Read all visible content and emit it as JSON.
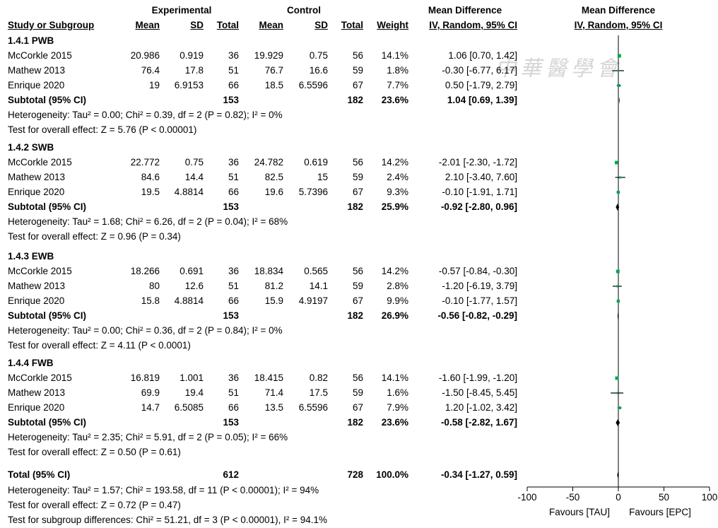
{
  "header": {
    "experimental": "Experimental",
    "control": "Control",
    "mean_difference": "Mean Difference",
    "mean_difference_plot": "Mean Difference",
    "study": "Study or Subgroup",
    "mean": "Mean",
    "sd": "SD",
    "total": "Total",
    "weight": "Weight",
    "method": "IV, Random, 95% CI",
    "method_plot": "IV, Random, 95% CI"
  },
  "subgroups": [
    {
      "title": "1.4.1 PWB",
      "studies": [
        {
          "name": "McCorkle 2015",
          "e_mean": "20.986",
          "e_sd": "0.919",
          "e_total": "36",
          "c_mean": "19.929",
          "c_sd": "0.75",
          "c_total": "56",
          "weight": "14.1%",
          "ci": "1.06 [0.70, 1.42]"
        },
        {
          "name": "Mathew 2013",
          "e_mean": "76.4",
          "e_sd": "17.8",
          "e_total": "51",
          "c_mean": "76.7",
          "c_sd": "16.6",
          "c_total": "59",
          "weight": "1.8%",
          "ci": "-0.30 [-6.77, 6.17]"
        },
        {
          "name": "Enrique 2020",
          "e_mean": "19",
          "e_sd": "6.9153",
          "e_total": "66",
          "c_mean": "18.5",
          "c_sd": "6.5596",
          "c_total": "67",
          "weight": "7.7%",
          "ci": "0.50 [-1.79, 2.79]"
        }
      ],
      "subtotal": {
        "label": "Subtotal (95% CI)",
        "e_total": "153",
        "c_total": "182",
        "weight": "23.6%",
        "ci": "1.04 [0.69, 1.39]"
      },
      "heterogeneity": "Heterogeneity: Tau² = 0.00; Chi² = 0.39, df = 2 (P = 0.82); I² = 0%",
      "overall": "Test for overall effect: Z = 5.76 (P < 0.00001)"
    },
    {
      "title": "1.4.2 SWB",
      "studies": [
        {
          "name": "McCorkle 2015",
          "e_mean": "22.772",
          "e_sd": "0.75",
          "e_total": "36",
          "c_mean": "24.782",
          "c_sd": "0.619",
          "c_total": "56",
          "weight": "14.2%",
          "ci": "-2.01 [-2.30, -1.72]"
        },
        {
          "name": "Mathew 2013",
          "e_mean": "84.6",
          "e_sd": "14.4",
          "e_total": "51",
          "c_mean": "82.5",
          "c_sd": "15",
          "c_total": "59",
          "weight": "2.4%",
          "ci": "2.10 [-3.40, 7.60]"
        },
        {
          "name": "Enrique 2020",
          "e_mean": "19.5",
          "e_sd": "4.8814",
          "e_total": "66",
          "c_mean": "19.6",
          "c_sd": "5.7396",
          "c_total": "67",
          "weight": "9.3%",
          "ci": "-0.10 [-1.91, 1.71]"
        }
      ],
      "subtotal": {
        "label": "Subtotal (95% CI)",
        "e_total": "153",
        "c_total": "182",
        "weight": "25.9%",
        "ci": "-0.92 [-2.80, 0.96]"
      },
      "heterogeneity": "Heterogeneity: Tau² = 1.68; Chi² = 6.26, df = 2 (P = 0.04); I² = 68%",
      "overall": "Test for overall effect: Z = 0.96 (P = 0.34)"
    },
    {
      "title": "1.4.3 EWB",
      "studies": [
        {
          "name": "McCorkle 2015",
          "e_mean": "18.266",
          "e_sd": "0.691",
          "e_total": "36",
          "c_mean": "18.834",
          "c_sd": "0.565",
          "c_total": "56",
          "weight": "14.2%",
          "ci": "-0.57 [-0.84, -0.30]"
        },
        {
          "name": "Mathew 2013",
          "e_mean": "80",
          "e_sd": "12.6",
          "e_total": "51",
          "c_mean": "81.2",
          "c_sd": "14.1",
          "c_total": "59",
          "weight": "2.8%",
          "ci": "-1.20 [-6.19, 3.79]"
        },
        {
          "name": "Enrique 2020",
          "e_mean": "15.8",
          "e_sd": "4.8814",
          "e_total": "66",
          "c_mean": "15.9",
          "c_sd": "4.9197",
          "c_total": "67",
          "weight": "9.9%",
          "ci": "-0.10 [-1.77, 1.57]"
        }
      ],
      "subtotal": {
        "label": "Subtotal (95% CI)",
        "e_total": "153",
        "c_total": "182",
        "weight": "26.9%",
        "ci": "-0.56 [-0.82, -0.29]"
      },
      "heterogeneity": "Heterogeneity: Tau² = 0.00; Chi² = 0.36, df = 2 (P = 0.84); I² = 0%",
      "overall": "Test for overall effect: Z = 4.11 (P < 0.0001)"
    },
    {
      "title": "1.4.4 FWB",
      "studies": [
        {
          "name": "McCorkle 2015",
          "e_mean": "16.819",
          "e_sd": "1.001",
          "e_total": "36",
          "c_mean": "18.415",
          "c_sd": "0.82",
          "c_total": "56",
          "weight": "14.1%",
          "ci": "-1.60 [-1.99, -1.20]"
        },
        {
          "name": "Mathew 2013",
          "e_mean": "69.9",
          "e_sd": "19.4",
          "e_total": "51",
          "c_mean": "71.4",
          "c_sd": "17.5",
          "c_total": "59",
          "weight": "1.6%",
          "ci": "-1.50 [-8.45, 5.45]"
        },
        {
          "name": "Enrique 2020",
          "e_mean": "14.7",
          "e_sd": "6.5085",
          "e_total": "66",
          "c_mean": "13.5",
          "c_sd": "6.5596",
          "c_total": "67",
          "weight": "7.9%",
          "ci": "1.20 [-1.02, 3.42]"
        }
      ],
      "subtotal": {
        "label": "Subtotal (95% CI)",
        "e_total": "153",
        "c_total": "182",
        "weight": "23.6%",
        "ci": "-0.58 [-2.82, 1.67]"
      },
      "heterogeneity": "Heterogeneity: Tau² = 2.35; Chi² = 5.91, df = 2 (P = 0.05); I² = 66%",
      "overall": "Test for overall effect: Z = 0.50 (P = 0.61)"
    }
  ],
  "total": {
    "label": "Total (95% CI)",
    "e_total": "612",
    "c_total": "728",
    "weight": "100.0%",
    "ci": "-0.34 [-1.27, 0.59]",
    "heterogeneity": "Heterogeneity: Tau² = 1.57; Chi² = 193.58, df = 11 (P < 0.00001); I² = 94%",
    "overall": "Test for overall effect: Z = 0.72 (P = 0.47)",
    "subgroup_diff": "Test for subgroup differences: Chi² = 51.21, df = 3 (P < 0.00001), I² = 94.1%"
  },
  "axis": {
    "tick_labels": [
      "-100",
      "-50",
      "0",
      "50",
      "100"
    ],
    "favours_left": "Favours [TAU]",
    "favours_right": "Favours [EPC]"
  },
  "watermark": "中華醫學會",
  "colors": {
    "point": "#00a651",
    "line": "#000000",
    "diamond": "#000000"
  },
  "chart_data": {
    "type": "forest",
    "x_axis": {
      "range": [
        -100,
        100
      ],
      "ticks": [
        -100,
        -50,
        0,
        50,
        100
      ]
    },
    "studies": [
      {
        "group": "1.4.1 PWB",
        "name": "McCorkle 2015",
        "md": 1.06,
        "lo": 0.7,
        "hi": 1.42,
        "weight": 14.1
      },
      {
        "group": "1.4.1 PWB",
        "name": "Mathew 2013",
        "md": -0.3,
        "lo": -6.77,
        "hi": 6.17,
        "weight": 1.8
      },
      {
        "group": "1.4.1 PWB",
        "name": "Enrique 2020",
        "md": 0.5,
        "lo": -1.79,
        "hi": 2.79,
        "weight": 7.7
      },
      {
        "group": "1.4.2 SWB",
        "name": "McCorkle 2015",
        "md": -2.01,
        "lo": -2.3,
        "hi": -1.72,
        "weight": 14.2
      },
      {
        "group": "1.4.2 SWB",
        "name": "Mathew 2013",
        "md": 2.1,
        "lo": -3.4,
        "hi": 7.6,
        "weight": 2.4
      },
      {
        "group": "1.4.2 SWB",
        "name": "Enrique 2020",
        "md": -0.1,
        "lo": -1.91,
        "hi": 1.71,
        "weight": 9.3
      },
      {
        "group": "1.4.3 EWB",
        "name": "McCorkle 2015",
        "md": -0.57,
        "lo": -0.84,
        "hi": -0.3,
        "weight": 14.2
      },
      {
        "group": "1.4.3 EWB",
        "name": "Mathew 2013",
        "md": -1.2,
        "lo": -6.19,
        "hi": 3.79,
        "weight": 2.8
      },
      {
        "group": "1.4.3 EWB",
        "name": "Enrique 2020",
        "md": -0.1,
        "lo": -1.77,
        "hi": 1.57,
        "weight": 9.9
      },
      {
        "group": "1.4.4 FWB",
        "name": "McCorkle 2015",
        "md": -1.6,
        "lo": -1.99,
        "hi": -1.2,
        "weight": 14.1
      },
      {
        "group": "1.4.4 FWB",
        "name": "Mathew 2013",
        "md": -1.5,
        "lo": -8.45,
        "hi": 5.45,
        "weight": 1.6
      },
      {
        "group": "1.4.4 FWB",
        "name": "Enrique 2020",
        "md": 1.2,
        "lo": -1.02,
        "hi": 3.42,
        "weight": 7.9
      }
    ],
    "subtotals": [
      {
        "group": "1.4.1 PWB",
        "md": 1.04,
        "lo": 0.69,
        "hi": 1.39
      },
      {
        "group": "1.4.2 SWB",
        "md": -0.92,
        "lo": -2.8,
        "hi": 0.96
      },
      {
        "group": "1.4.3 EWB",
        "md": -0.56,
        "lo": -0.82,
        "hi": -0.29
      },
      {
        "group": "1.4.4 FWB",
        "md": -0.58,
        "lo": -2.82,
        "hi": 1.67
      }
    ],
    "overall": {
      "md": -0.34,
      "lo": -1.27,
      "hi": 0.59
    }
  }
}
